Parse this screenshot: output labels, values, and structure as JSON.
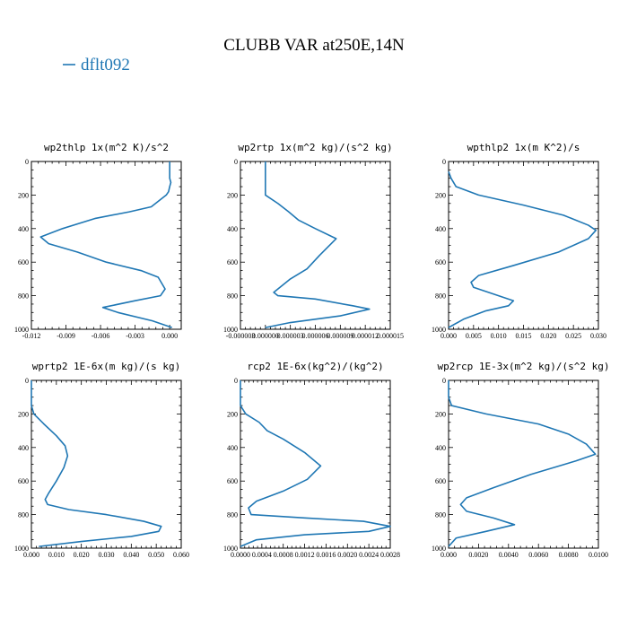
{
  "title": "CLUBB VAR at250E,14N",
  "legend": {
    "label": "dflt092",
    "color": "#1f77b4"
  },
  "chart_data": [
    {
      "type": "line",
      "title": "wp2thlp   1x(m^2 K)/s^2",
      "xlim": [
        -0.012,
        0.001
      ],
      "ylim": [
        1000,
        0
      ],
      "x_ticks": [
        "-0.012",
        "-0.009",
        "-0.006",
        "-0.003",
        "0.000"
      ],
      "x_tick_values": [
        -0.012,
        -0.009,
        -0.006,
        -0.003,
        0.0
      ],
      "y_ticks": [
        "0",
        "200",
        "400",
        "600",
        "800",
        "1000"
      ],
      "y_tick_values": [
        0,
        200,
        400,
        600,
        800,
        1000
      ],
      "series": [
        {
          "x": [
            0.0,
            0.0,
            0.0001,
            0.0,
            -0.0001,
            -0.0003,
            -0.0016,
            -0.0035,
            -0.0065,
            -0.0093,
            -0.0112,
            -0.0105,
            -0.008,
            -0.0055,
            -0.0025,
            -0.001,
            -0.0004,
            -0.0008,
            -0.003,
            -0.0058,
            -0.0045,
            -0.0015,
            0.0002
          ],
          "y": [
            0,
            100,
            125,
            150,
            180,
            200,
            270,
            300,
            340,
            400,
            450,
            490,
            540,
            600,
            650,
            690,
            760,
            800,
            830,
            870,
            900,
            950,
            990
          ]
        }
      ]
    },
    {
      "type": "line",
      "title": "wp2rtp   1x(m^2 kg)/(s^2 kg)",
      "xlim": [
        -3e-06,
        1.5e-05
      ],
      "ylim": [
        1000,
        0
      ],
      "x_ticks": [
        "-0.000003",
        "0.000000",
        "0.000003",
        "0.000006",
        "0.000009",
        "0.000012",
        "0.000015"
      ],
      "x_tick_values": [
        -3e-06,
        0.0,
        3e-06,
        6e-06,
        9e-06,
        1.2e-05,
        1.5e-05
      ],
      "y_ticks": [
        "0",
        "200",
        "400",
        "600",
        "800",
        "1000"
      ],
      "y_tick_values": [
        0,
        200,
        400,
        600,
        800,
        1000
      ],
      "series": [
        {
          "x": [
            0.0,
            0.0,
            0.0,
            5e-10,
            1.5e-06,
            2.8e-06,
            4e-06,
            6e-06,
            8.5e-06,
            6.5e-06,
            5e-06,
            3e-06,
            1.5e-06,
            1e-06,
            1.5e-06,
            6e-06,
            1.05e-05,
            1.25e-05,
            9e-06,
            3e-06,
            0.0
          ],
          "y": [
            0,
            100,
            150,
            200,
            250,
            300,
            350,
            400,
            460,
            560,
            640,
            700,
            760,
            780,
            800,
            820,
            860,
            880,
            920,
            960,
            990
          ]
        }
      ]
    },
    {
      "type": "line",
      "title": "wpthlp2   1x(m K^2)/s",
      "xlim": [
        0.0,
        0.03
      ],
      "ylim": [
        1000,
        0
      ],
      "x_ticks": [
        "0.000",
        "0.005",
        "0.010",
        "0.015",
        "0.020",
        "0.025",
        "0.030"
      ],
      "x_tick_values": [
        0.0,
        0.005,
        0.01,
        0.015,
        0.02,
        0.025,
        0.03
      ],
      "y_ticks": [
        "0",
        "200",
        "400",
        "600",
        "800",
        "1000"
      ],
      "y_tick_values": [
        0,
        200,
        400,
        600,
        800,
        1000
      ],
      "series": [
        {
          "x": [
            0.0,
            0.0005,
            0.0015,
            0.006,
            0.015,
            0.023,
            0.028,
            0.0295,
            0.028,
            0.022,
            0.013,
            0.006,
            0.0045,
            0.005,
            0.009,
            0.013,
            0.012,
            0.0075,
            0.003,
            0.0
          ],
          "y": [
            60,
            100,
            150,
            200,
            260,
            320,
            380,
            410,
            460,
            540,
            620,
            680,
            720,
            750,
            790,
            830,
            860,
            890,
            940,
            990
          ]
        }
      ]
    },
    {
      "type": "line",
      "title": "wprtp2   1E-6x(m kg)/(s kg)",
      "xlim": [
        0.0,
        0.06
      ],
      "ylim": [
        1000,
        0
      ],
      "x_ticks": [
        "0.000",
        "0.010",
        "0.020",
        "0.030",
        "0.040",
        "0.050",
        "0.060"
      ],
      "x_tick_values": [
        0.0,
        0.01,
        0.02,
        0.03,
        0.04,
        0.05,
        0.06
      ],
      "y_ticks": [
        "0",
        "200",
        "400",
        "600",
        "800",
        "1000"
      ],
      "y_tick_values": [
        0,
        200,
        400,
        600,
        800,
        1000
      ],
      "series": [
        {
          "x": [
            0.0,
            0.0,
            0.001,
            0.005,
            0.01,
            0.0135,
            0.0145,
            0.013,
            0.01,
            0.007,
            0.0055,
            0.0065,
            0.015,
            0.03,
            0.045,
            0.052,
            0.051,
            0.04,
            0.02,
            0.003
          ],
          "y": [
            0,
            150,
            200,
            260,
            330,
            390,
            450,
            520,
            600,
            670,
            710,
            740,
            770,
            800,
            840,
            870,
            900,
            930,
            960,
            990
          ]
        }
      ]
    },
    {
      "type": "line",
      "title": "rcp2   1E-6x(kg^2)/(kg^2)",
      "xlim": [
        0.0,
        0.0028
      ],
      "ylim": [
        1000,
        0
      ],
      "x_ticks": [
        "0.0000",
        "0.0004",
        "0.0008",
        "0.0012",
        "0.0016",
        "0.0020",
        "0.0024",
        "0.0028"
      ],
      "x_tick_values": [
        0.0,
        0.0004,
        0.0008,
        0.0012,
        0.0016,
        0.002,
        0.0024,
        0.0028
      ],
      "y_ticks": [
        "0",
        "200",
        "400",
        "600",
        "800",
        "1000"
      ],
      "y_tick_values": [
        0,
        200,
        400,
        600,
        800,
        1000
      ],
      "series": [
        {
          "x": [
            0.0,
            0.0,
            0.0001,
            0.00035,
            0.0005,
            0.0008,
            0.0012,
            0.0015,
            0.00125,
            0.0008,
            0.0003,
            0.00015,
            0.0002,
            0.0012,
            0.0023,
            0.0028,
            0.0024,
            0.0012,
            0.0003,
            0.0
          ],
          "y": [
            0,
            150,
            200,
            250,
            300,
            350,
            430,
            510,
            590,
            660,
            720,
            760,
            800,
            820,
            840,
            870,
            900,
            920,
            950,
            990
          ]
        }
      ]
    },
    {
      "type": "line",
      "title": "wp2rcp   1E-3x(m^2 kg)/(s^2 kg)",
      "xlim": [
        0.0,
        0.01
      ],
      "ylim": [
        1000,
        0
      ],
      "x_ticks": [
        "0.000",
        "0.0020",
        "0.0040",
        "0.0060",
        "0.0080",
        "0.0100"
      ],
      "x_tick_values": [
        0.0,
        0.002,
        0.004,
        0.006,
        0.008,
        0.01
      ],
      "y_ticks": [
        "0",
        "200",
        "400",
        "600",
        "800",
        "1000"
      ],
      "y_tick_values": [
        0,
        200,
        400,
        600,
        800,
        1000
      ],
      "series": [
        {
          "x": [
            0.0,
            0.0,
            0.0002,
            0.0025,
            0.006,
            0.008,
            0.0092,
            0.0098,
            0.0085,
            0.0055,
            0.003,
            0.0012,
            0.0008,
            0.0012,
            0.003,
            0.0044,
            0.0025,
            0.0005,
            0.0
          ],
          "y": [
            0,
            100,
            150,
            200,
            260,
            320,
            380,
            440,
            480,
            560,
            640,
            700,
            740,
            780,
            820,
            860,
            900,
            940,
            990
          ]
        }
      ]
    }
  ]
}
